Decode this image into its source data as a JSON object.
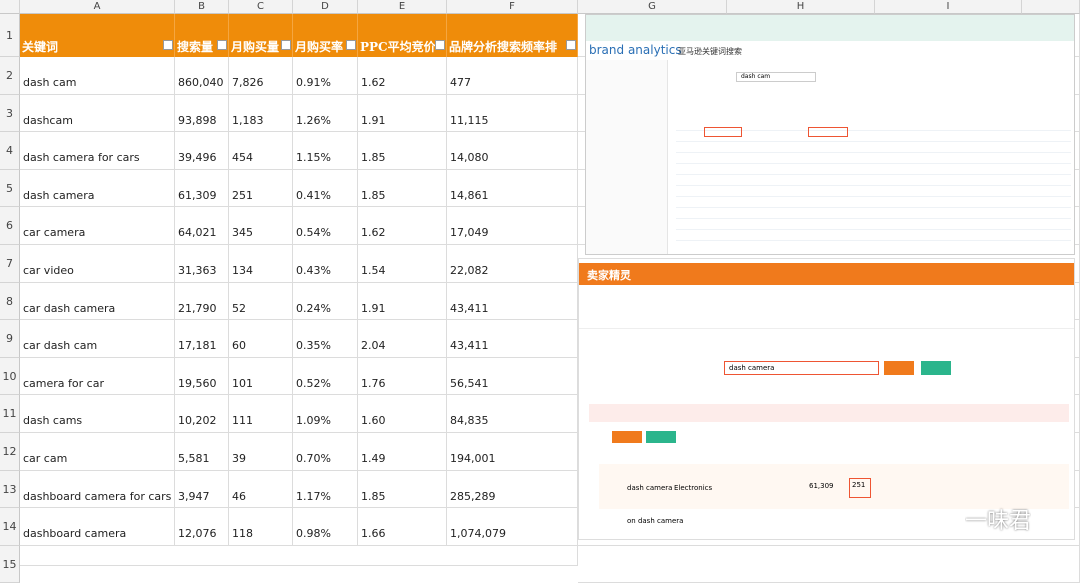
{
  "sheet": {
    "columns": [
      "A",
      "B",
      "C",
      "D",
      "E",
      "F",
      "G",
      "H",
      "I"
    ],
    "row_numbers": [
      "1",
      "2",
      "3",
      "4",
      "5",
      "6",
      "7",
      "8",
      "9",
      "10",
      "11",
      "12",
      "13",
      "14",
      "15"
    ],
    "header": [
      "关键词",
      "搜索量",
      "月购买量",
      "月购买率",
      "PPC平均竞价",
      "品牌分析搜索频率排"
    ],
    "rows": [
      [
        "dash cam",
        "860,040",
        "7,826",
        "0.91%",
        "1.62",
        "477"
      ],
      [
        "dashcam",
        "93,898",
        "1,183",
        "1.26%",
        "1.91",
        "11,115"
      ],
      [
        "dash camera for cars",
        "39,496",
        "454",
        "1.15%",
        "1.85",
        "14,080"
      ],
      [
        "dash camera",
        "61,309",
        "251",
        "0.41%",
        "1.85",
        "14,861"
      ],
      [
        "car camera",
        "64,021",
        "345",
        "0.54%",
        "1.62",
        "17,049"
      ],
      [
        "car video",
        "31,363",
        "134",
        "0.43%",
        "1.54",
        "22,082"
      ],
      [
        "car dash camera",
        "21,790",
        "52",
        "0.24%",
        "1.91",
        "43,411"
      ],
      [
        "car dash cam",
        "17,181",
        "60",
        "0.35%",
        "2.04",
        "43,411"
      ],
      [
        "camera for car",
        "19,560",
        "101",
        "0.52%",
        "1.76",
        "56,541"
      ],
      [
        "dash cams",
        "10,202",
        "111",
        "1.09%",
        "1.60",
        "84,835"
      ],
      [
        "car cam",
        "5,581",
        "39",
        "0.70%",
        "1.49",
        "194,001"
      ],
      [
        "dashboard camera for cars",
        "3,947",
        "46",
        "1.17%",
        "1.85",
        "285,289"
      ],
      [
        "dashboard camera",
        "12,076",
        "118",
        "0.98%",
        "1.66",
        "1,074,079"
      ]
    ]
  },
  "image1": {
    "brand": "brand analytics",
    "title": "亚马逊关键词搜索",
    "keyword": "dash cam"
  },
  "image2": {
    "logo": "卖家精灵",
    "search": "dash camera",
    "row_keyword": "dash camera",
    "row_category": "Electronics",
    "row_search": "61,309",
    "row_purchase": "251",
    "row2_keyword": "on dash camera"
  },
  "watermark": "一味君"
}
